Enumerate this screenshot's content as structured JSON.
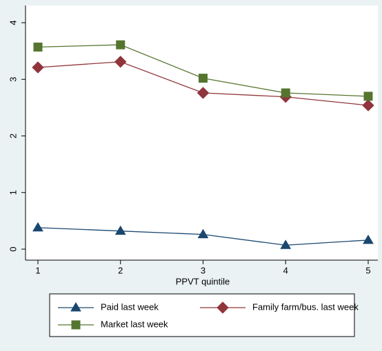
{
  "chart_data": {
    "type": "line",
    "x": [
      1,
      2,
      3,
      4,
      5
    ],
    "xlabel": "PPVT quintile",
    "xlim": [
      1,
      5
    ],
    "xticks": [
      1,
      2,
      3,
      4,
      5
    ],
    "ylim": [
      0,
      4
    ],
    "yticks": [
      0,
      1,
      2,
      3,
      4
    ],
    "legend": "bottom",
    "series": [
      {
        "name": "Paid last week",
        "color": "#1a476f",
        "marker": "triangle",
        "values": [
          0.38,
          0.32,
          0.26,
          0.07,
          0.16
        ]
      },
      {
        "name": "Family farm/bus. last week",
        "color": "#90353b",
        "marker": "diamond",
        "values": [
          3.21,
          3.31,
          2.76,
          2.69,
          2.54
        ]
      },
      {
        "name": "Market last week",
        "color": "#55752f",
        "marker": "square",
        "values": [
          3.57,
          3.61,
          3.02,
          2.76,
          2.7
        ]
      }
    ]
  }
}
